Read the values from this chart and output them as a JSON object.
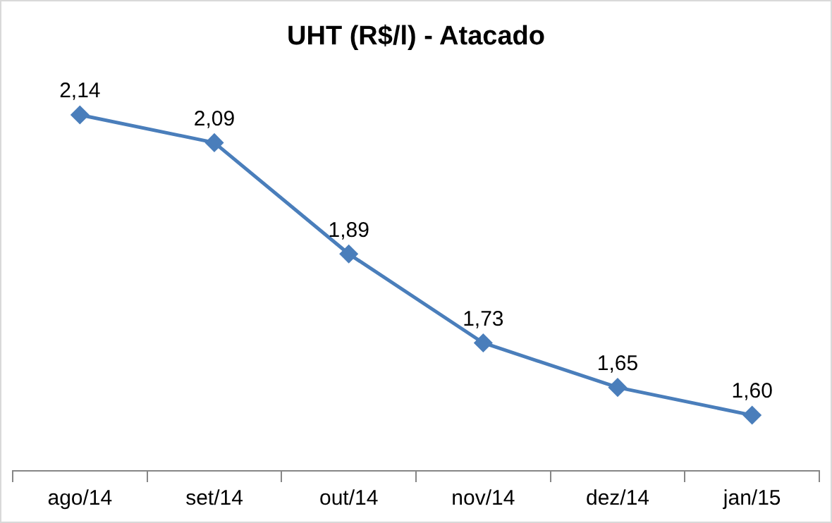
{
  "chart_data": {
    "type": "line",
    "title": "UHT (R$/l) - Atacado",
    "categories": [
      "ago/14",
      "set/14",
      "out/14",
      "nov/14",
      "dez/14",
      "jan/15"
    ],
    "series": [
      {
        "color": "#4a7ebb",
        "values": [
          2.14,
          2.09,
          1.89,
          1.73,
          1.65,
          1.6
        ],
        "value_labels": [
          "2,14",
          "2,09",
          "1,89",
          "1,73",
          "1,65",
          "1,60"
        ]
      }
    ],
    "marker": "diamond",
    "line_style": "solid",
    "grid": false,
    "legend": false,
    "tick_labels": "x"
  }
}
